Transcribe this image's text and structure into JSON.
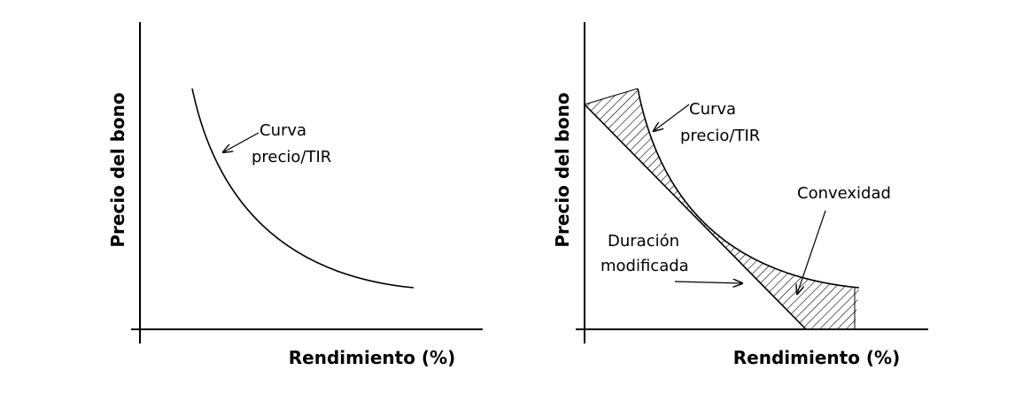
{
  "left_panel": {
    "y_label": "Precio del bono",
    "x_label": "Rendimiento (%)",
    "curve_label": [
      "Curva",
      "precio/TIR"
    ]
  },
  "right_panel": {
    "y_label": "Precio del bono",
    "x_label": "Rendimiento (%)",
    "curve_label": [
      "Curva",
      "precio/TIR"
    ],
    "convexity_label": "Convexidad",
    "duration_label": [
      "Duración",
      "modificada"
    ]
  }
}
